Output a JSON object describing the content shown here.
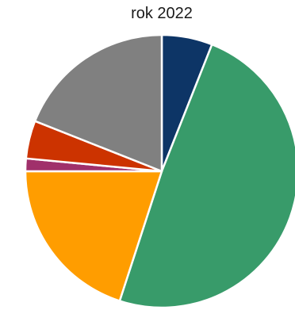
{
  "chart_data": {
    "type": "pie",
    "title": "rok 2022",
    "series": [
      {
        "value": 6.0,
        "color": "#0d3566"
      },
      {
        "value": 49.0,
        "color": "#389b6a"
      },
      {
        "value": 20.0,
        "color": "#ff9d00"
      },
      {
        "value": 1.5,
        "color": "#a0306b"
      },
      {
        "value": 4.5,
        "color": "#cc3300"
      },
      {
        "value": 19.0,
        "color": "#808080"
      }
    ],
    "start_angle_deg": 0,
    "direction": "clockwise",
    "slice_border_color": "#ffffff",
    "legend": "none"
  }
}
